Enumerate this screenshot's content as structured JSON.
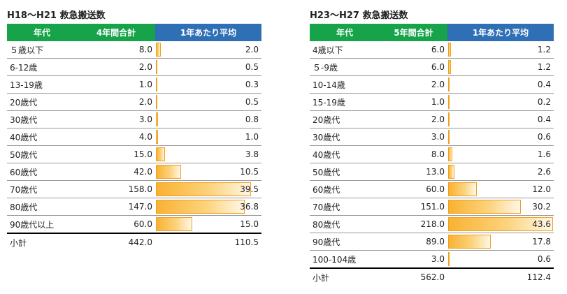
{
  "tables": [
    {
      "title": "H18～H21 救急搬送数",
      "headers": [
        "年代",
        "4年間合計",
        "1年あたり平均"
      ],
      "max_avg": 43.6,
      "rows": [
        {
          "age": "５歳以下",
          "total": "8.0",
          "avg": "2.0",
          "avg_value": 2.0
        },
        {
          "age": "6-12歳",
          "total": "2.0",
          "avg": "0.5",
          "avg_value": 0.5
        },
        {
          "age": "13-19歳",
          "total": "1.0",
          "avg": "0.3",
          "avg_value": 0.3
        },
        {
          "age": "20歳代",
          "total": "2.0",
          "avg": "0.5",
          "avg_value": 0.5
        },
        {
          "age": "30歳代",
          "total": "3.0",
          "avg": "0.8",
          "avg_value": 0.8
        },
        {
          "age": "40歳代",
          "total": "4.0",
          "avg": "1.0",
          "avg_value": 1.0
        },
        {
          "age": "50歳代",
          "total": "15.0",
          "avg": "3.8",
          "avg_value": 3.8
        },
        {
          "age": "60歳代",
          "total": "42.0",
          "avg": "10.5",
          "avg_value": 10.5
        },
        {
          "age": "70歳代",
          "total": "158.0",
          "avg": "39.5",
          "avg_value": 39.5
        },
        {
          "age": "80歳代",
          "total": "147.0",
          "avg": "36.8",
          "avg_value": 36.8
        },
        {
          "age": "90歳代以上",
          "total": "60.0",
          "avg": "15.0",
          "avg_value": 15.0
        }
      ],
      "subtotal": {
        "label": "小計",
        "total": "442.0",
        "avg": "110.5"
      }
    },
    {
      "title": "H23～H27 救急搬送数",
      "headers": [
        "年代",
        "5年間合計",
        "1年あたり平均"
      ],
      "max_avg": 43.6,
      "rows": [
        {
          "age": "4歳以下",
          "total": "6.0",
          "avg": "1.2",
          "avg_value": 1.2
        },
        {
          "age": "５-9歳",
          "total": "6.0",
          "avg": "1.2",
          "avg_value": 1.2
        },
        {
          "age": "10-14歳",
          "total": "2.0",
          "avg": "0.4",
          "avg_value": 0.4
        },
        {
          "age": "15-19歳",
          "total": "1.0",
          "avg": "0.2",
          "avg_value": 0.2
        },
        {
          "age": "20歳代",
          "total": "2.0",
          "avg": "0.4",
          "avg_value": 0.4
        },
        {
          "age": "30歳代",
          "total": "3.0",
          "avg": "0.6",
          "avg_value": 0.6
        },
        {
          "age": "40歳代",
          "total": "8.0",
          "avg": "1.6",
          "avg_value": 1.6
        },
        {
          "age": "50歳代",
          "total": "13.0",
          "avg": "2.6",
          "avg_value": 2.6
        },
        {
          "age": "60歳代",
          "total": "60.0",
          "avg": "12.0",
          "avg_value": 12.0
        },
        {
          "age": "70歳代",
          "total": "151.0",
          "avg": "30.2",
          "avg_value": 30.2
        },
        {
          "age": "80歳代",
          "total": "218.0",
          "avg": "43.6",
          "avg_value": 43.6
        },
        {
          "age": "90歳代",
          "total": "89.0",
          "avg": "17.8",
          "avg_value": 17.8
        },
        {
          "age": "100-104歳",
          "total": "3.0",
          "avg": "0.6",
          "avg_value": 0.6
        }
      ],
      "subtotal": {
        "label": "小計",
        "total": "562.0",
        "avg": "112.4"
      }
    }
  ],
  "colors": {
    "header_green": "#16a34a",
    "header_blue": "#2f6fb5",
    "bar_orange": "#f9b233"
  }
}
